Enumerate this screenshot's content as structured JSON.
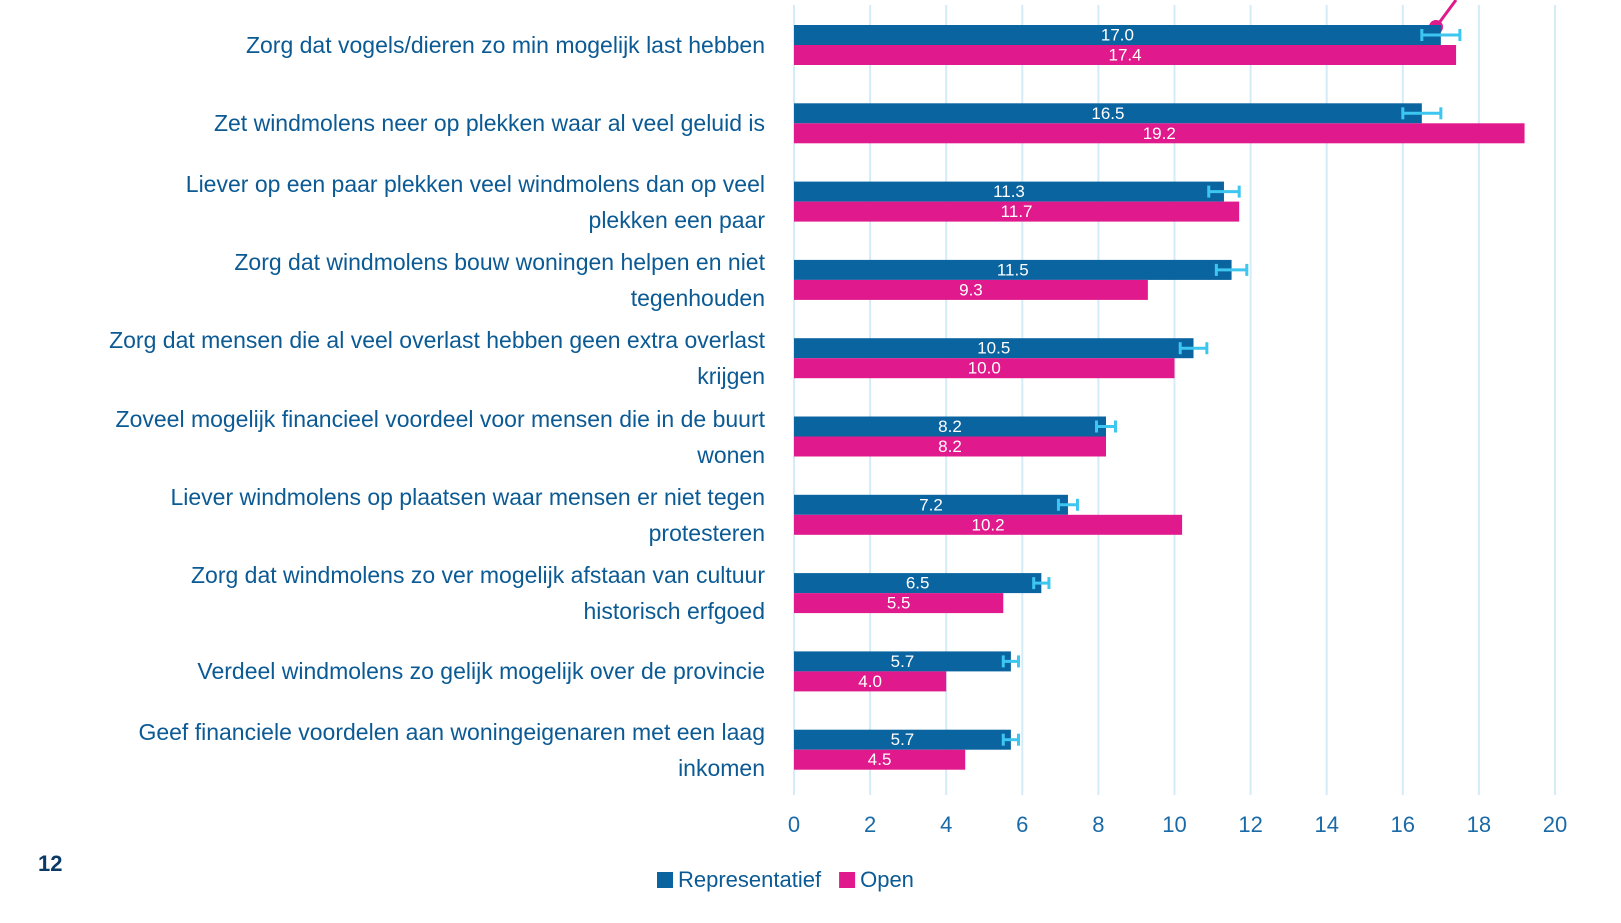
{
  "chart_data": {
    "type": "hbar",
    "categories": [
      "Zorg dat vogels/dieren zo min mogelijk last hebben",
      "Zet windmolens neer op plekken waar al veel geluid is",
      "Liever op een paar plekken veel windmolens dan op veel\nplekken een paar",
      "Zorg dat windmolens bouw woningen helpen en niet\ntegenhouden",
      "Zorg dat mensen die al veel overlast hebben geen extra overlast\nkrijgen",
      "Zoveel mogelijk financieel voordeel voor mensen die in de buurt\nwonen",
      "Liever windmolens op plaatsen waar mensen er niet tegen\nprotesteren",
      "Zorg dat windmolens zo ver mogelijk afstaan van cultuur\nhistorisch erfgoed",
      "Verdeel windmolens zo gelijk mogelijk over de provincie",
      "Geef financiele voordelen aan woningeigenaren met een laag\ninkomen"
    ],
    "series": [
      {
        "name": "Representatief",
        "color": "#0a64a0",
        "values": [
          17.0,
          16.5,
          11.3,
          11.5,
          10.5,
          8.2,
          7.2,
          6.5,
          5.7,
          5.7
        ],
        "value_labels": [
          "17.0",
          "16.5",
          "11.3",
          "11.5",
          "10.5",
          "8.2",
          "7.2",
          "6.5",
          "5.7",
          "5.7"
        ],
        "errors": [
          0.5,
          0.5,
          0.4,
          0.4,
          0.35,
          0.25,
          0.25,
          0.2,
          0.2,
          0.2
        ],
        "error_color": "#3dc6f0"
      },
      {
        "name": "Open",
        "color": "#e0198c",
        "values": [
          17.4,
          19.2,
          11.7,
          9.3,
          10.0,
          8.2,
          10.2,
          5.5,
          4.0,
          4.5
        ],
        "value_labels": [
          "17.4",
          "19.2",
          "11.7",
          "9.3",
          "10.0",
          "8.2",
          "10.2",
          "5.5",
          "4.0",
          "4.5"
        ]
      }
    ],
    "xlim": [
      0,
      20
    ],
    "xticks": [
      0,
      2,
      4,
      6,
      8,
      10,
      12,
      14,
      16,
      18,
      20
    ],
    "grid": true,
    "legend": "bottom"
  },
  "page_number": "12"
}
